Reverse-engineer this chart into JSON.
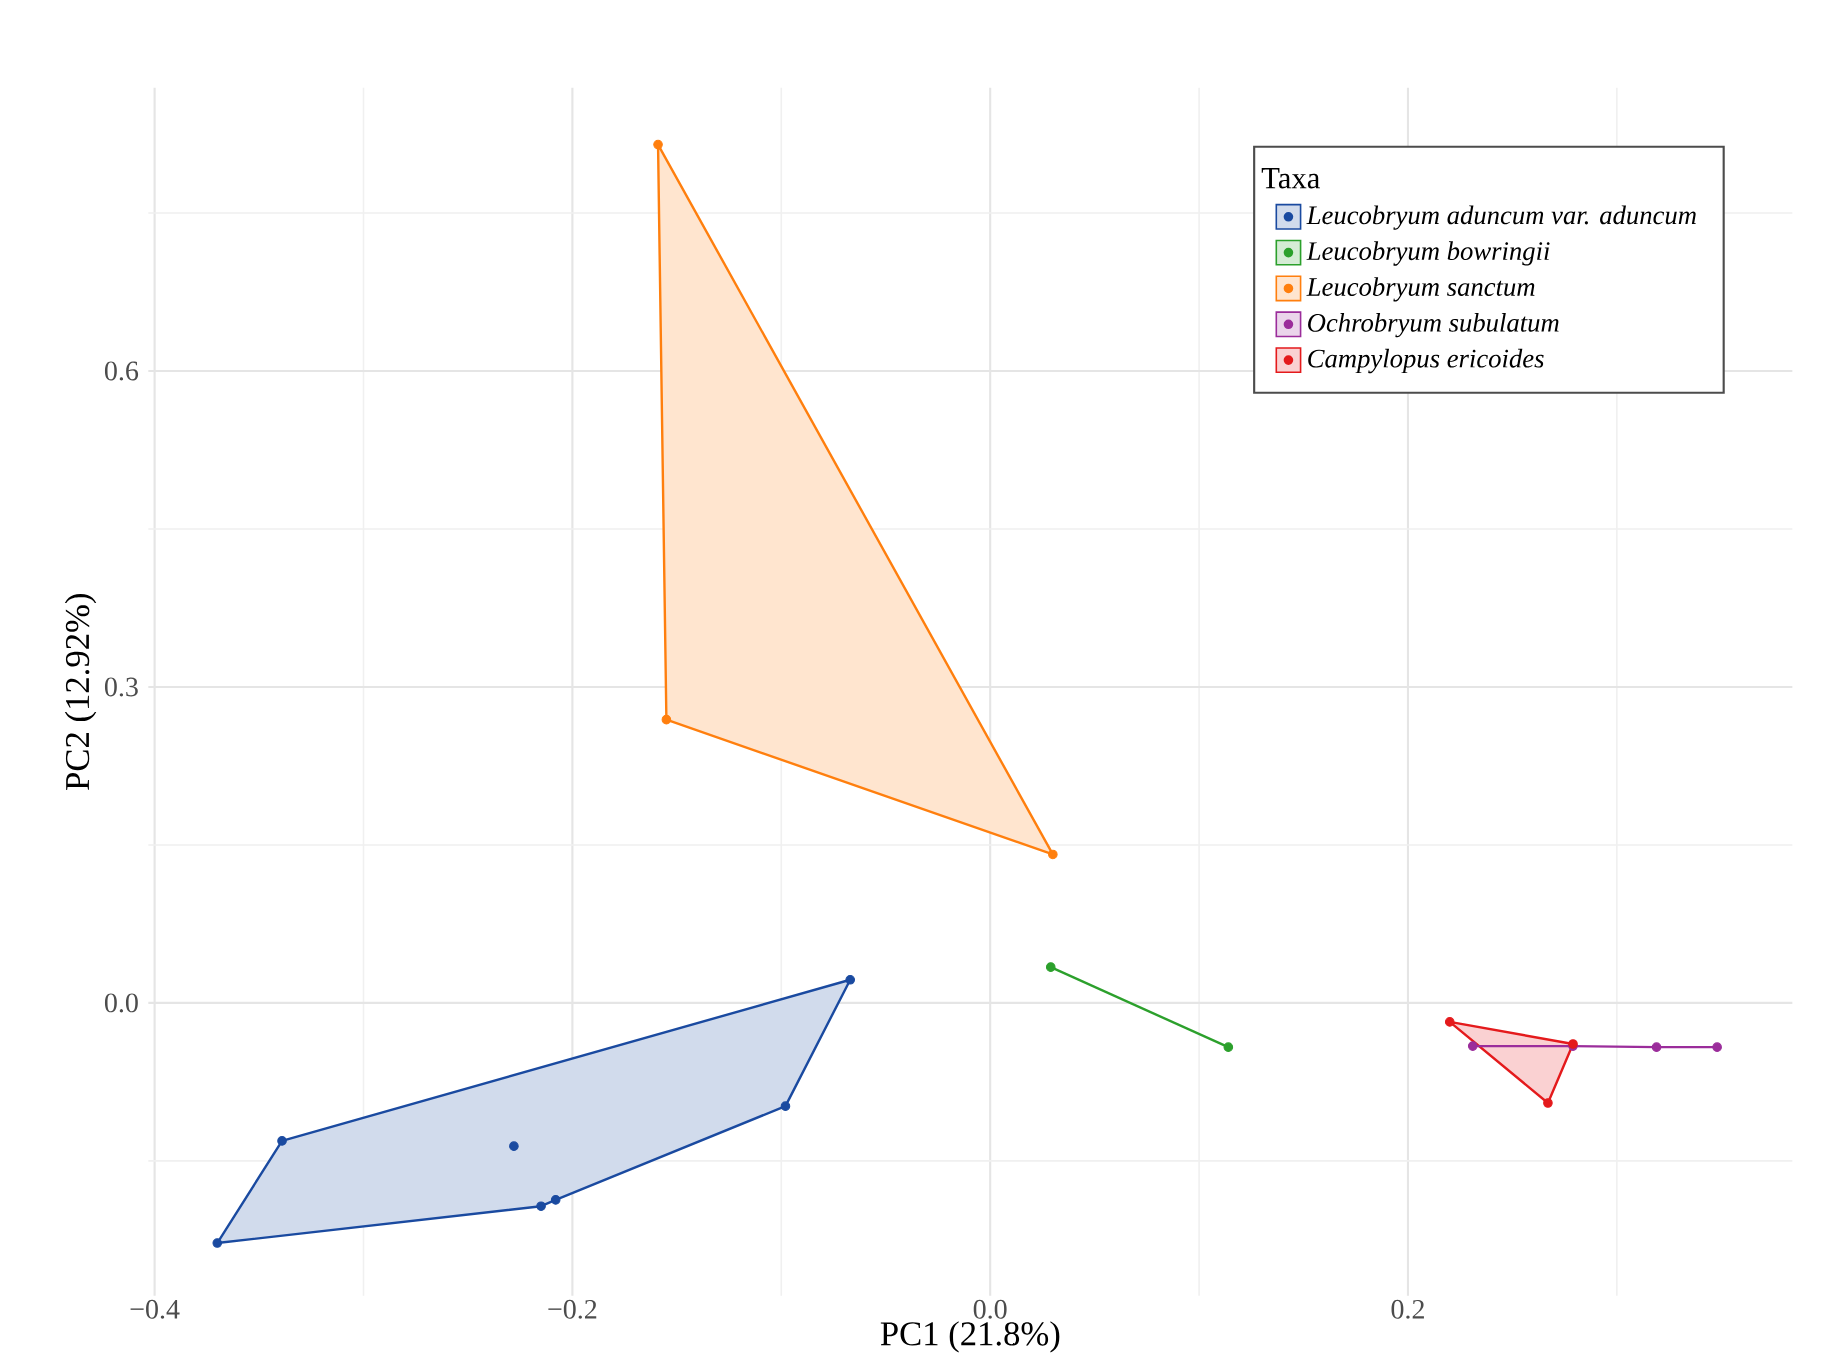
{
  "chart_data": {
    "type": "scatter",
    "xlabel": "PC1 (21.8%)",
    "ylabel": "PC2 (12.92%)",
    "legend_title": "Taxa",
    "series": [
      {
        "type": "area",
        "marker": "none",
        "color": "#1a4aa0",
        "x": [
          -0.37,
          -0.339,
          -0.067,
          -0.098,
          -0.208,
          -0.215,
          -0.37
        ],
        "values": [
          -0.228,
          -0.131,
          0.022,
          -0.098,
          -0.187,
          -0.193,
          -0.228
        ]
      },
      {
        "type": "line",
        "marker": "none",
        "color": "#2ca02c",
        "x": [
          0.029,
          0.114
        ],
        "values": [
          0.034,
          -0.042
        ]
      },
      {
        "type": "area",
        "marker": "none",
        "color": "#ff7f0e",
        "x": [
          -0.159,
          -0.155,
          0.03,
          -0.159
        ],
        "values": [
          0.815,
          0.269,
          0.141,
          0.815
        ]
      },
      {
        "type": "line",
        "marker": "none",
        "color": "#9b2d9b",
        "x": [
          0.231,
          0.279,
          0.319,
          0.348
        ],
        "values": [
          -0.041,
          -0.041,
          -0.042,
          -0.042
        ]
      },
      {
        "type": "area",
        "marker": "none",
        "color": "#e41a1c",
        "x": [
          0.22,
          0.279,
          0.267,
          0.22
        ],
        "values": [
          -0.018,
          -0.039,
          -0.095,
          -0.018
        ]
      },
      {
        "name": "*Leucobryum aduncum* var. *aduncum*",
        "marker": "circle",
        "color": "#1a4aa0",
        "x": [
          -0.37,
          -0.339,
          -0.228,
          -0.215,
          -0.208,
          -0.098,
          -0.067
        ],
        "values": [
          -0.228,
          -0.131,
          -0.136,
          -0.193,
          -0.187,
          -0.098,
          0.022
        ]
      },
      {
        "name": "*Leucobryum bowringii*",
        "marker": "circle",
        "color": "#2ca02c",
        "x": [
          0.029,
          0.114
        ],
        "values": [
          0.034,
          -0.042
        ]
      },
      {
        "name": "*Leucobryum sanctum*",
        "marker": "circle",
        "color": "#ff7f0e",
        "x": [
          -0.159,
          -0.155,
          0.03
        ],
        "values": [
          0.815,
          0.269,
          0.141
        ]
      },
      {
        "name": "*Ochrobryum subulatum*",
        "marker": "circle",
        "color": "#9b2d9b",
        "x": [
          0.231,
          0.279,
          0.319,
          0.348
        ],
        "values": [
          -0.041,
          -0.041,
          -0.042,
          -0.042
        ]
      },
      {
        "name": "*Campylopus ericoides*",
        "marker": "circle",
        "color": "#e41a1c",
        "x": [
          0.22,
          0.279,
          0.267
        ],
        "values": [
          -0.018,
          -0.039,
          -0.095
        ]
      }
    ],
    "xlim": [
      -0.403,
      0.384
    ],
    "ylim": [
      -0.278,
      0.869
    ],
    "xticks": [
      {
        "value": -0.4,
        "label": "−0.4"
      },
      {
        "value": -0.2,
        "label": "−0.2"
      },
      {
        "value": 0.0,
        "label": "0.0"
      },
      {
        "value": 0.2,
        "label": "0.2"
      }
    ],
    "yticks": [
      {
        "value": 0.0,
        "label": "0.0"
      },
      {
        "value": 0.3,
        "label": "0.3"
      },
      {
        "value": 0.6,
        "label": "0.6"
      }
    ],
    "grid": true,
    "legend": "top right"
  }
}
